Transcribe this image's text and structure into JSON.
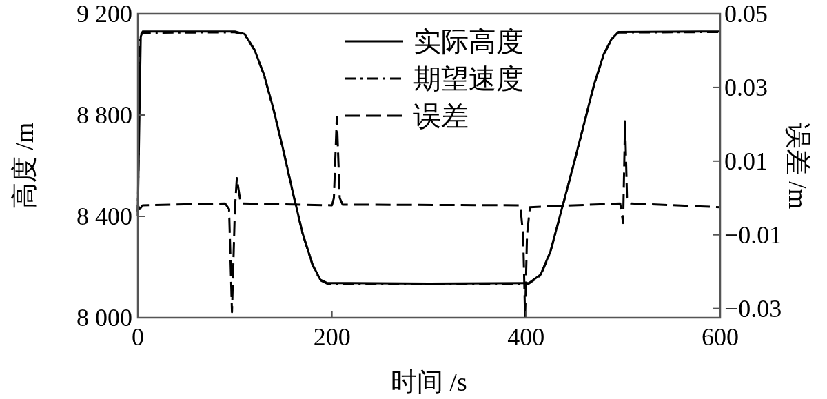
{
  "chart_data": {
    "type": "line",
    "xlabel": "时间 /s",
    "ylabel": "高度 /m",
    "y2label": "误差 /m",
    "xlim": [
      0,
      600
    ],
    "xticks": [
      0,
      200,
      400,
      600
    ],
    "ylim": [
      8000,
      9200
    ],
    "yticks": [
      {
        "value": 8000,
        "label": "8 000"
      },
      {
        "value": 8400,
        "label": "8 400"
      },
      {
        "value": 8800,
        "label": "8 800"
      },
      {
        "value": 9200,
        "label": "9 200"
      }
    ],
    "y2lim": [
      -0.0325,
      0.05
    ],
    "y2ticks": [
      {
        "value": -0.03,
        "label": "−0.03"
      },
      {
        "value": -0.01,
        "label": "−0.01"
      },
      0.01,
      0.03,
      0.05
    ],
    "legend": "top",
    "grid": false,
    "series": [
      {
        "name": "实际高度",
        "color": "#000000",
        "line_style": "solid",
        "x": [
          0,
          3,
          5,
          100,
          110,
          120,
          130,
          140,
          150,
          160,
          170,
          180,
          188,
          195,
          300,
          403,
          415,
          425,
          438,
          450,
          460,
          470,
          480,
          488,
          495,
          600
        ],
        "values": [
          8420,
          9110,
          9130,
          9130,
          9120,
          9060,
          8960,
          8820,
          8660,
          8490,
          8330,
          8210,
          8150,
          8137,
          8135,
          8137,
          8170,
          8260,
          8446,
          8620,
          8770,
          8920,
          9040,
          9100,
          9128,
          9130
        ]
      },
      {
        "name": "期望速度",
        "color": "#000000",
        "line_style": "dashdot",
        "x": [
          0,
          2,
          4,
          100,
          110,
          120,
          130,
          140,
          150,
          160,
          170,
          180,
          188,
          195,
          300,
          403,
          415,
          425,
          438,
          450,
          460,
          470,
          480,
          488,
          495,
          600
        ],
        "values": [
          8400,
          9100,
          9125,
          9127,
          9118,
          9058,
          8958,
          8818,
          8658,
          8488,
          8328,
          8208,
          8148,
          8135,
          8133,
          8135,
          8168,
          8258,
          8444,
          8618,
          8768,
          8918,
          9038,
          9098,
          9126,
          9128
        ]
      },
      {
        "name": "误差",
        "color": "#000000",
        "line_style": "dashed",
        "axis": "y2",
        "x": [
          0,
          2,
          5,
          90,
          94,
          97,
          100,
          102,
          106,
          200,
          202,
          205,
          208,
          211,
          394,
          397,
          399,
          401,
          404,
          497,
          500,
          502,
          504,
          508,
          600
        ],
        "values": [
          -0.002,
          -0.003,
          -0.002,
          -0.0015,
          -0.003,
          -0.031,
          -0.003,
          0.0054,
          -0.0015,
          -0.002,
          0.0,
          0.022,
          0.0,
          -0.0018,
          -0.002,
          -0.01,
          -0.0324,
          -0.01,
          -0.0025,
          -0.0015,
          -0.0068,
          0.0208,
          0.0,
          -0.0015,
          -0.0025
        ]
      }
    ]
  }
}
